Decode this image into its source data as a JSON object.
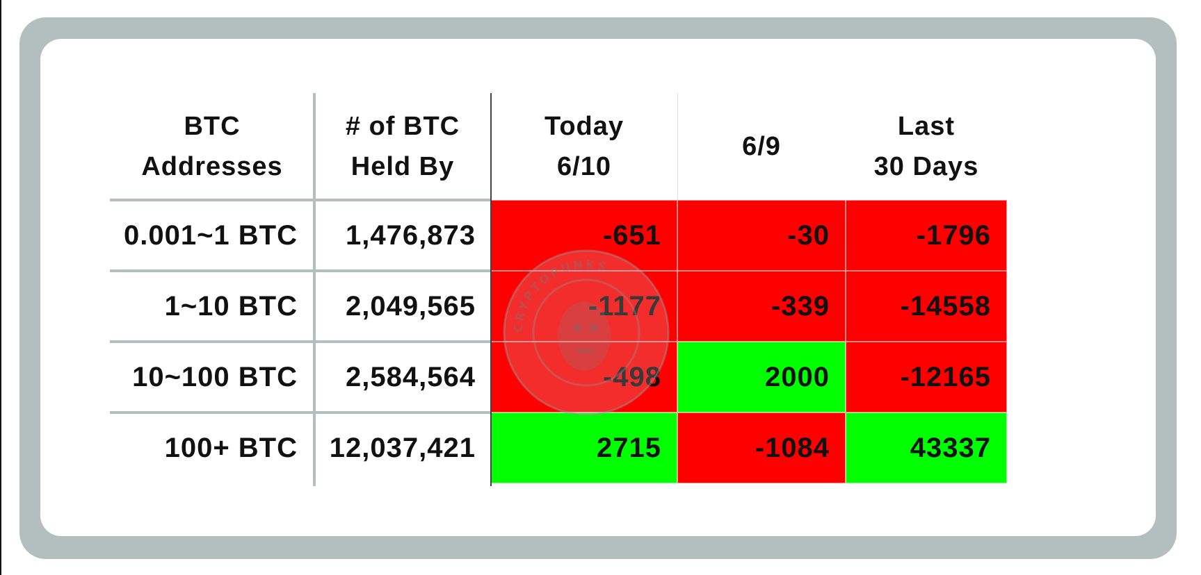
{
  "chart_data": {
    "type": "table",
    "columns": [
      "BTC\nAddresses",
      "# of BTC\nHeld By",
      "Today\n6/10",
      "6/9",
      "Last\n30 Days"
    ],
    "rows": [
      {
        "tier": "0.001~1 BTC",
        "held_by": "1,476,873",
        "today": "-651",
        "prev": "-30",
        "last30": "-1796"
      },
      {
        "tier": "1~10 BTC",
        "held_by": "2,049,565",
        "today": "-1177",
        "prev": "-339",
        "last30": "-14558"
      },
      {
        "tier": "10~100 BTC",
        "held_by": "2,584,564",
        "today": "-498",
        "prev": "2000",
        "last30": "-12165"
      },
      {
        "tier": "100+ BTC",
        "held_by": "12,037,421",
        "today": "2715",
        "prev": "-1084",
        "last30": "43337"
      }
    ],
    "colors": {
      "negative": "#ff0000",
      "positive": "#00ff00",
      "frame": "#b3bfbf"
    },
    "watermark": "CRYPTOPUNKS"
  }
}
